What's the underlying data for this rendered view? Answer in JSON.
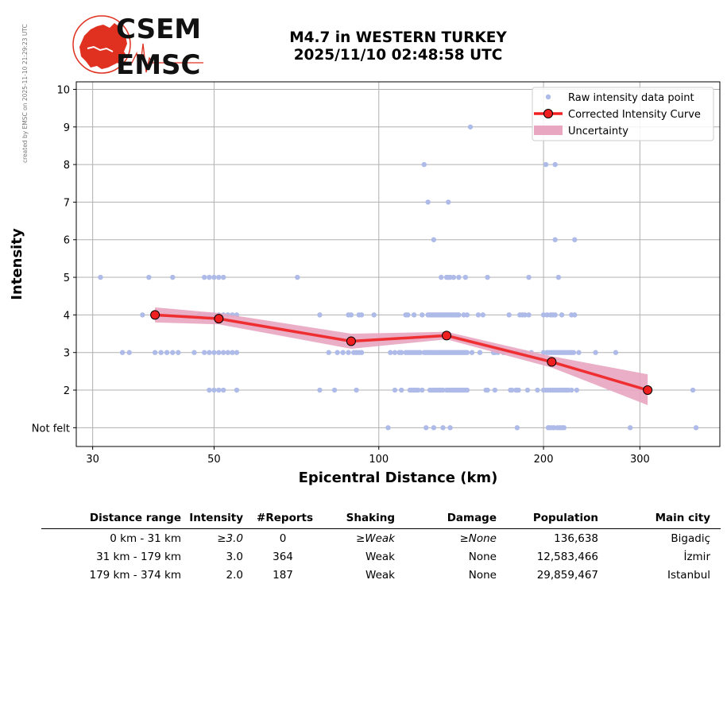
{
  "header": {
    "logo_text_top": "CSEM",
    "logo_text_bottom": "EMSC",
    "side_note": "created by EMSC on 2025-11-10 21:29:23 UTC",
    "title_line1": "M4.7 in WESTERN TURKEY",
    "title_line2": "2025/11/10 02:48:58 UTC"
  },
  "colors": {
    "raw_points": "#aebbe8",
    "curve": "#f02020",
    "curve_marker_edge": "#000000",
    "uncertainty": "#e8a6c0",
    "grid": "#b0b0b0",
    "logo_red": "#e03020"
  },
  "chart_data": {
    "type": "scatter",
    "xlabel": "Epicentral Distance (km)",
    "ylabel": "Intensity",
    "x_scale": "log",
    "xlim": [
      28,
      420
    ],
    "ylim": [
      0.5,
      10.2
    ],
    "x_ticks": [
      30,
      50,
      100,
      200,
      300
    ],
    "y_ticks": [
      1,
      2,
      3,
      4,
      5,
      6,
      7,
      8,
      9,
      10
    ],
    "y_tick_labels": [
      "Not felt",
      "2",
      "3",
      "4",
      "5",
      "6",
      "7",
      "8",
      "9",
      "10"
    ],
    "grid": true,
    "legend_position": "top-right",
    "legend": [
      "Raw intensity data point",
      "Corrected Intensity Curve",
      "Uncertainty"
    ],
    "corrected_curve": {
      "x": [
        39,
        51,
        89,
        133,
        207,
        310
      ],
      "y": [
        4.0,
        3.9,
        3.3,
        3.45,
        2.75,
        2.0
      ]
    },
    "uncertainty": {
      "x": [
        39,
        51,
        89,
        133,
        207,
        310
      ],
      "upper": [
        4.2,
        4.05,
        3.5,
        3.55,
        2.9,
        2.42
      ],
      "lower": [
        3.8,
        3.75,
        3.1,
        3.35,
        2.6,
        1.6
      ]
    },
    "raw_points": [
      {
        "y": 1,
        "x": [
          104,
          122,
          126,
          131,
          135,
          179,
          204,
          205,
          207,
          209,
          212,
          214,
          216,
          218,
          288,
          380
        ]
      },
      {
        "y": 2,
        "x": [
          49,
          50,
          51,
          52,
          55,
          78,
          83,
          91,
          107,
          110,
          114,
          115,
          116,
          117,
          118,
          120,
          124,
          125,
          126,
          127,
          128,
          129,
          130,
          131,
          133,
          134,
          135,
          136,
          137,
          138,
          139,
          140,
          141,
          142,
          143,
          144,
          145,
          157,
          158,
          163,
          174,
          175,
          178,
          179,
          180,
          187,
          195,
          200,
          202,
          204,
          206,
          208,
          210,
          212,
          214,
          216,
          218,
          220,
          222,
          225,
          230,
          375
        ]
      },
      {
        "y": 3,
        "x": [
          34,
          35,
          39,
          40,
          41,
          42,
          43,
          46,
          48,
          49,
          50,
          51,
          52,
          53,
          54,
          55,
          81,
          84,
          86,
          88,
          90,
          91,
          92,
          93,
          105,
          107,
          109,
          110,
          112,
          113,
          114,
          115,
          116,
          117,
          118,
          119,
          121,
          122,
          123,
          124,
          125,
          126,
          127,
          128,
          129,
          130,
          131,
          132,
          133,
          134,
          135,
          136,
          137,
          138,
          139,
          140,
          141,
          142,
          143,
          144,
          145,
          148,
          153,
          162,
          163,
          165,
          169,
          179,
          183,
          185,
          190,
          200,
          203,
          205,
          207,
          209,
          211,
          213,
          215,
          217,
          219,
          221,
          223,
          225,
          227,
          232,
          249,
          271
        ]
      },
      {
        "y": 4,
        "x": [
          37,
          47,
          48,
          49,
          50,
          51,
          52,
          53,
          54,
          55,
          78,
          88,
          89,
          92,
          93,
          98,
          112,
          113,
          116,
          120,
          123,
          124,
          125,
          126,
          127,
          128,
          129,
          130,
          131,
          132,
          133,
          134,
          135,
          136,
          137,
          138,
          139,
          140,
          143,
          145,
          152,
          155,
          173,
          181,
          183,
          185,
          188,
          200,
          203,
          206,
          208,
          210,
          216,
          225,
          228
        ]
      },
      {
        "y": 5,
        "x": [
          31,
          38,
          42,
          48,
          49,
          50,
          51,
          52,
          71,
          130,
          133,
          134,
          135,
          137,
          140,
          144,
          158,
          188,
          213
        ]
      },
      {
        "y": 6,
        "x": [
          126,
          210,
          228
        ]
      },
      {
        "y": 7,
        "x": [
          123,
          134
        ]
      },
      {
        "y": 8,
        "x": [
          121,
          202,
          210
        ]
      },
      {
        "y": 9,
        "x": [
          147
        ]
      }
    ]
  },
  "table": {
    "headers": [
      "Distance range",
      "Intensity",
      "#Reports",
      "Shaking",
      "Damage",
      "Population",
      "Main city"
    ],
    "rows": [
      {
        "distance": "0 km -   31 km",
        "intensity": "≥3.0",
        "reports": "0",
        "shaking": "≥Weak",
        "damage": "≥None",
        "population": "136,638",
        "city": "Bigadiç"
      },
      {
        "distance": "31 km -  179 km",
        "intensity": "3.0",
        "reports": "364",
        "shaking": "Weak",
        "damage": "None",
        "population": "12,583,466",
        "city": "İzmir"
      },
      {
        "distance": "179 km -  374 km",
        "intensity": "2.0",
        "reports": "187",
        "shaking": "Weak",
        "damage": "None",
        "population": "29,859,467",
        "city": "Istanbul"
      }
    ]
  }
}
